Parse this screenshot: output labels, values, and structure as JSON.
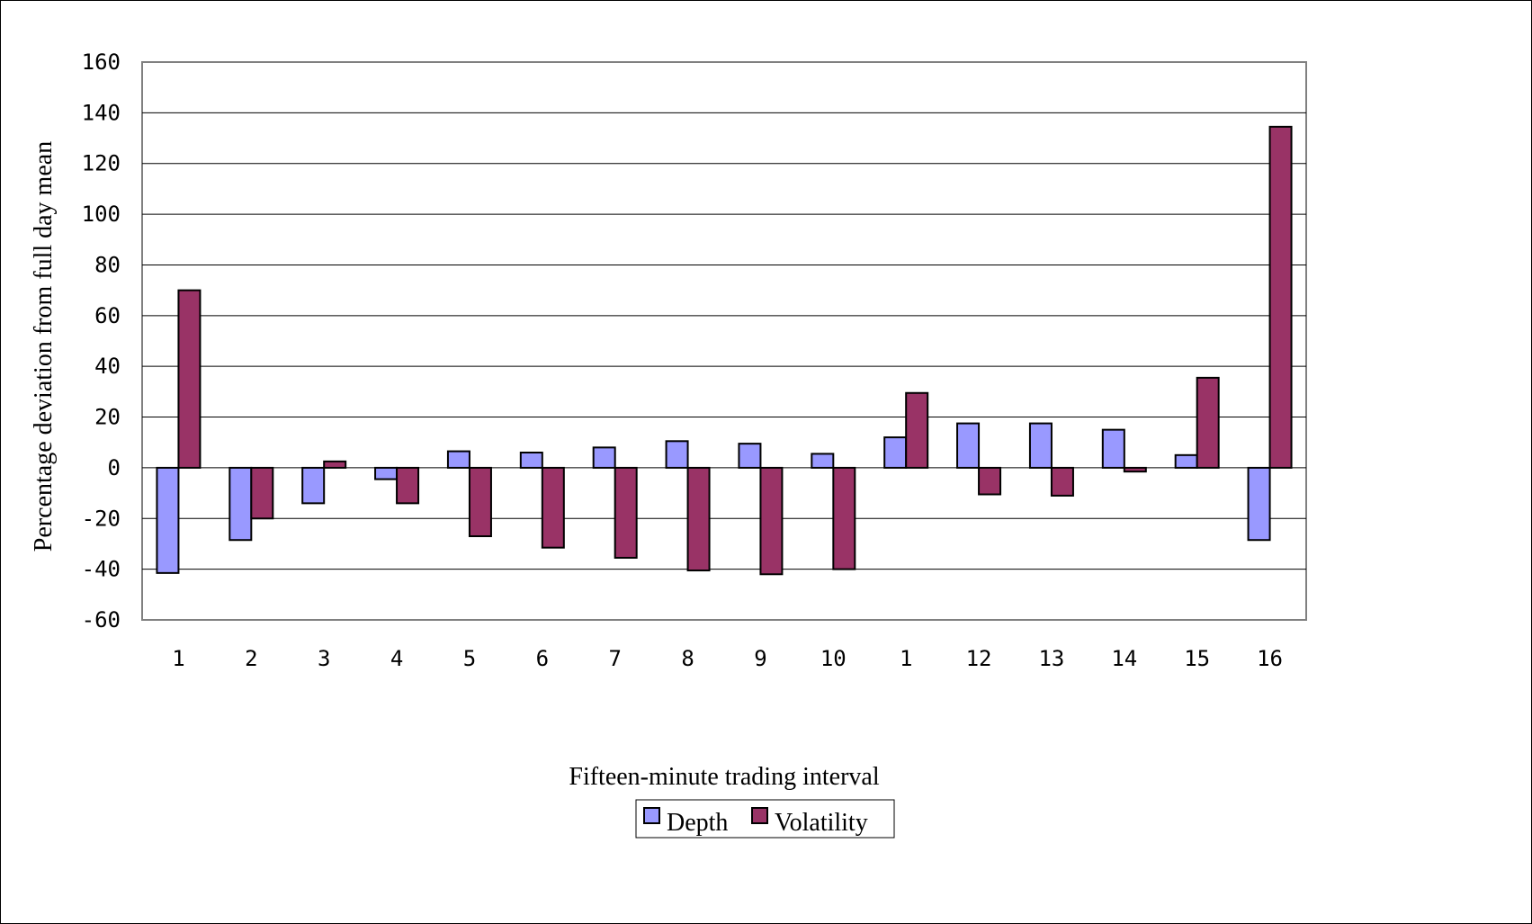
{
  "chart_data": {
    "type": "bar",
    "title": "",
    "xlabel": "Fifteen-minute trading interval",
    "ylabel": "Percentage deviation from full day mean",
    "categories": [
      "1",
      "2",
      "3",
      "4",
      "5",
      "6",
      "7",
      "8",
      "9",
      "10",
      "1",
      "12",
      "13",
      "14",
      "15",
      "16"
    ],
    "series": [
      {
        "name": "Depth",
        "color": "#9999ff",
        "values": [
          -41.5,
          -28.5,
          -14,
          -4.5,
          6.5,
          6,
          8,
          10.5,
          9.5,
          5.5,
          12,
          17.5,
          17.5,
          15,
          5,
          -28.5
        ]
      },
      {
        "name": "Volatility",
        "color": "#993366",
        "values": [
          70,
          -20,
          2.5,
          -14,
          -27,
          -31.5,
          -35.5,
          -40.5,
          -42,
          -40,
          29.5,
          -10.5,
          -11,
          -1.5,
          35.5,
          134.5
        ]
      }
    ],
    "ylim": [
      -60,
      160
    ],
    "yticks": [
      -60,
      -40,
      -20,
      0,
      20,
      40,
      60,
      80,
      100,
      120,
      140,
      160
    ],
    "grid": true,
    "legend_position": "bottom-center"
  }
}
